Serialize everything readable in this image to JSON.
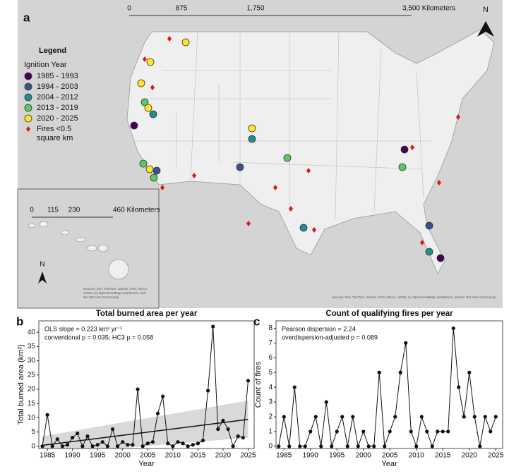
{
  "map": {
    "panel_label": "a",
    "scale_labels": [
      "0",
      "875",
      "1,750",
      "3,500 Kilometers"
    ],
    "north": "N",
    "legend": {
      "title": "Legend",
      "subtitle": "Ignition Year",
      "items": [
        {
          "label": "1985 - 1993",
          "color": "#440154",
          "shape": "circle"
        },
        {
          "label": "1994 - 2003",
          "color": "#3b528b",
          "shape": "circle"
        },
        {
          "label": "2004 - 2012",
          "color": "#21908c",
          "shape": "circle"
        },
        {
          "label": "2013 - 2019",
          "color": "#5ec962",
          "shape": "circle"
        },
        {
          "label": "2020 - 2025",
          "color": "#fde725",
          "shape": "circle"
        }
      ],
      "small_fires": {
        "label": [
          "Fires <0.5",
          "square km"
        ],
        "color": "#d7191c",
        "shape": "diamond"
      }
    },
    "inset_scale_labels": [
      "0",
      "115",
      "230",
      "460 Kilometers"
    ],
    "inset_north": "N",
    "inset_sources": [
      "Sources: Esri, TomTom, Garmin, FAO, NOAA,",
      "USGS, (c) OpenStreetMap contributors, and",
      "the GIS User Community"
    ],
    "sources": "Sources: Esri, TomTom, Garmin, FAO, NOAA, USGS, (c) OpenStreetMap contributors, and the GIS User Community"
  },
  "chart_data": [
    {
      "type": "line",
      "panel_label": "b",
      "title": "Total burned area per year",
      "annotations": [
        "OLS slope = 0.223 km² yr⁻¹",
        "conventional p = 0.035; HC3 p = 0.058"
      ],
      "x_label": "Year",
      "y_label": "Total burned area (km²)",
      "x": [
        1984,
        1985,
        1986,
        1987,
        1988,
        1989,
        1990,
        1991,
        1992,
        1993,
        1994,
        1995,
        1996,
        1997,
        1998,
        1999,
        2000,
        2001,
        2002,
        2003,
        2004,
        2005,
        2006,
        2007,
        2008,
        2009,
        2010,
        2011,
        2012,
        2013,
        2014,
        2015,
        2016,
        2017,
        2018,
        2019,
        2020,
        2021,
        2022,
        2023,
        2024,
        2025
      ],
      "values": [
        0,
        11,
        0,
        2.5,
        0,
        0.5,
        3,
        4.5,
        0,
        3.5,
        0,
        0.5,
        1.5,
        0,
        6,
        0,
        1.5,
        0.5,
        0.5,
        20,
        0,
        1,
        1.5,
        11.5,
        17.5,
        1,
        0,
        1.5,
        1,
        0,
        0.5,
        1,
        2,
        19.5,
        42,
        6,
        9,
        6,
        0,
        3.5,
        3,
        23
      ],
      "color": "#111111",
      "trend": {
        "x": [
          1984,
          2025
        ],
        "values": [
          0.3,
          9.4
        ],
        "color": "#111111"
      },
      "band": {
        "x": [
          1984,
          2025
        ],
        "lower": [
          -3,
          3
        ],
        "upper": [
          3.5,
          16
        ],
        "color": "#d9d9d9"
      },
      "xlim": [
        1983.3,
        2026.2
      ],
      "ylim": [
        -0.8,
        44
      ],
      "xticks": [
        1985,
        1990,
        1995,
        2000,
        2005,
        2010,
        2015,
        2020,
        2025
      ],
      "yticks": [
        0,
        5,
        10,
        15,
        20,
        25,
        30,
        35,
        40
      ]
    },
    {
      "type": "line",
      "panel_label": "c",
      "title": "Count of qualifying fires per year",
      "annotations": [
        "Pearson dispersion = 2.24",
        "overdispersion-adjusted p = 0.089"
      ],
      "x_label": "Year",
      "y_label": "Count of fires",
      "x": [
        1984,
        1985,
        1986,
        1987,
        1988,
        1989,
        1990,
        1991,
        1992,
        1993,
        1994,
        1995,
        1996,
        1997,
        1998,
        1999,
        2000,
        2001,
        2002,
        2003,
        2004,
        2005,
        2006,
        2007,
        2008,
        2009,
        2010,
        2011,
        2012,
        2013,
        2014,
        2015,
        2016,
        2017,
        2018,
        2019,
        2020,
        2021,
        2022,
        2023,
        2024,
        2025
      ],
      "values": [
        0,
        2,
        0,
        4,
        0,
        0,
        1,
        2,
        0,
        3,
        0,
        1,
        2,
        0,
        2,
        0,
        1,
        0,
        0,
        5,
        0,
        1,
        2,
        5,
        7,
        1,
        0,
        2,
        1,
        0,
        1,
        1,
        1,
        8,
        4,
        2,
        5,
        2,
        0,
        2,
        1,
        2
      ],
      "color": "#111111",
      "xlim": [
        1983.5,
        2026.3
      ],
      "ylim": [
        -0.15,
        8.5
      ],
      "xticks": [
        1985,
        1990,
        1995,
        2000,
        2005,
        2010,
        2015,
        2020,
        2025
      ],
      "yticks": [
        0,
        1,
        2,
        3,
        4,
        5,
        6,
        7,
        8
      ]
    }
  ]
}
